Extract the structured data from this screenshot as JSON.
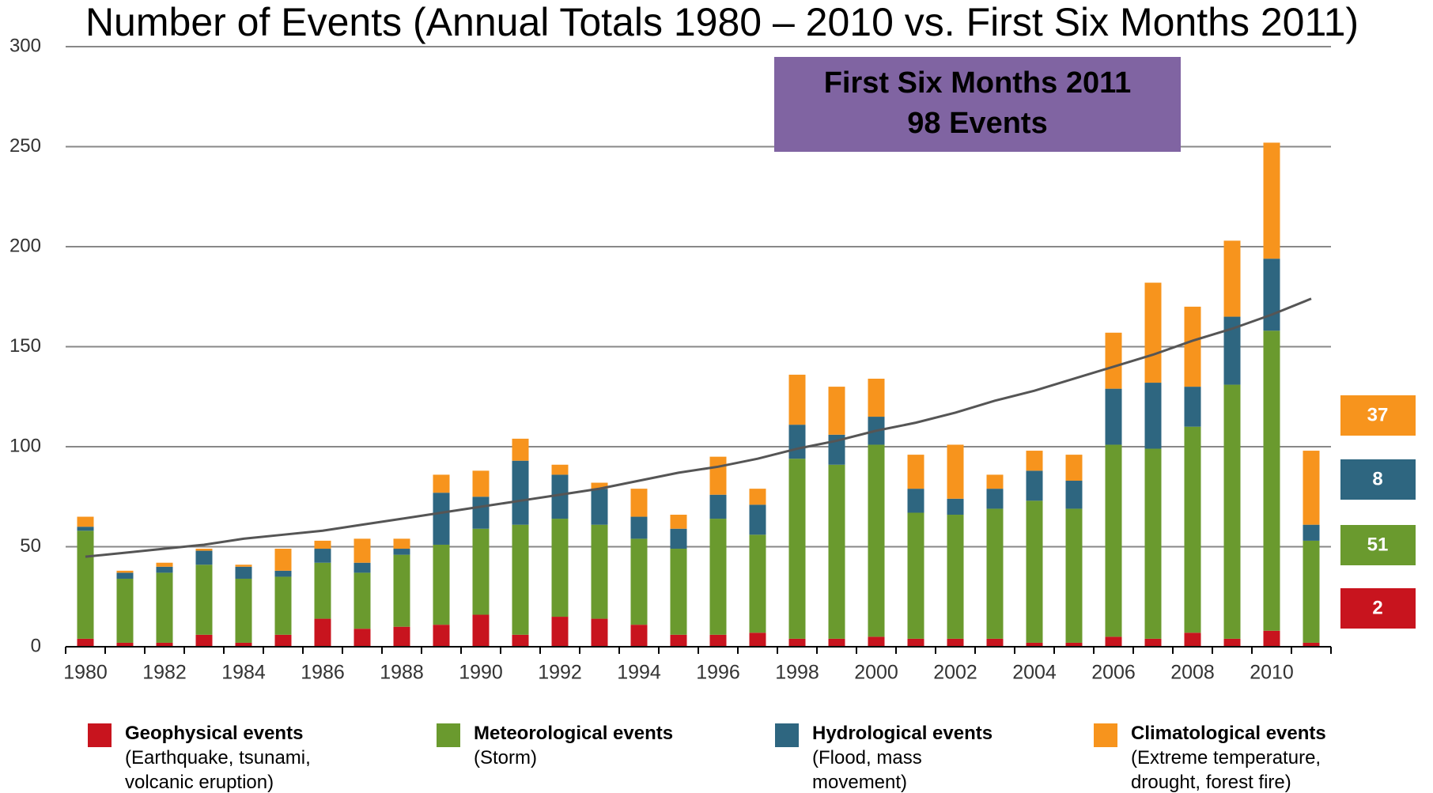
{
  "chart_data": {
    "type": "stacked_bar",
    "title": "Number of Events (Annual Totals 1980 – 2010 vs. First Six Months 2011)",
    "annotation": [
      "First Six Months 2011",
      "98 Events"
    ],
    "annotation_color": "#8064a2",
    "categories": [
      "1980",
      null,
      "1982",
      null,
      "1984",
      null,
      "1986",
      null,
      "1988",
      null,
      "1990",
      null,
      "1992",
      null,
      "1994",
      null,
      "1996",
      null,
      "1998",
      null,
      "2000",
      null,
      "2002",
      null,
      "2004",
      null,
      "2006",
      null,
      "2008",
      null,
      "2010",
      null
    ],
    "series": [
      {
        "name": "Geophysical events",
        "description": [
          "(Earthquake, tsunami,",
          "volcanic eruption)"
        ],
        "color": "#c8141e",
        "values": [
          4,
          2,
          2,
          6,
          2,
          6,
          14,
          9,
          10,
          11,
          16,
          6,
          15,
          14,
          11,
          6,
          6,
          7,
          4,
          4,
          5,
          4,
          4,
          4,
          2,
          2,
          5,
          4,
          7,
          4,
          8,
          2
        ]
      },
      {
        "name": "Meteorological events",
        "description": [
          "(Storm)"
        ],
        "color": "#6a9a2e",
        "values": [
          54,
          32,
          35,
          35,
          32,
          29,
          28,
          28,
          36,
          40,
          43,
          55,
          49,
          47,
          43,
          43,
          58,
          49,
          90,
          87,
          96,
          63,
          62,
          65,
          71,
          67,
          96,
          95,
          103,
          127,
          150,
          51
        ]
      },
      {
        "name": "Hydrological events",
        "description": [
          "(Flood, mass",
          "movement)"
        ],
        "color": "#2e6680",
        "values": [
          2,
          3,
          3,
          7,
          6,
          3,
          7,
          5,
          3,
          26,
          16,
          32,
          22,
          18,
          11,
          10,
          12,
          15,
          17,
          15,
          14,
          12,
          8,
          10,
          15,
          14,
          28,
          33,
          20,
          34,
          36,
          8
        ]
      },
      {
        "name": "Climatological events",
        "description": [
          "(Extreme temperature,",
          "drought, forest fire)"
        ],
        "color": "#f7941d",
        "values": [
          5,
          1,
          2,
          1,
          1,
          11,
          4,
          12,
          5,
          9,
          13,
          11,
          5,
          3,
          14,
          7,
          19,
          8,
          25,
          24,
          19,
          17,
          27,
          7,
          10,
          13,
          28,
          50,
          40,
          38,
          58,
          37
        ]
      }
    ],
    "trend": {
      "color": "#555555",
      "values": [
        45,
        47,
        49,
        51,
        54,
        56,
        58,
        61,
        64,
        67,
        70,
        73,
        76,
        79,
        83,
        87,
        90,
        94,
        99,
        103,
        108,
        112,
        117,
        123,
        128,
        134,
        140,
        146,
        153,
        159,
        166,
        174
      ]
    },
    "ylim": [
      0,
      300
    ],
    "yticks": [
      0,
      50,
      100,
      150,
      200,
      250,
      300
    ],
    "grid": true
  }
}
